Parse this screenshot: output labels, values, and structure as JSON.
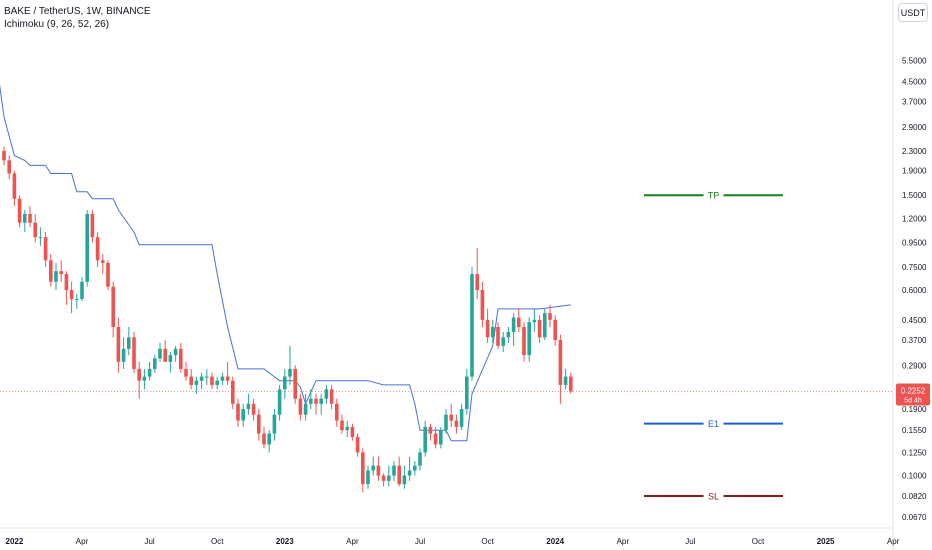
{
  "header": {
    "title": "BAKE / TetherUS, 1W, BINANCE",
    "indicator": "Ichimoku (9, 26, 52, 26)"
  },
  "currency_button": "USDT",
  "colors": {
    "up": "#26a69a",
    "down": "#ef5350",
    "ichimoku": "#4a6fd8",
    "tp": "#1b7f1b",
    "entry": "#1e5cd6",
    "sl": "#8b1a1a",
    "price_tag": "#ef5350"
  },
  "price_tag": {
    "value": "0.2252",
    "countdown": "5d 4h"
  },
  "chart_data": {
    "type": "candlestick",
    "y_scale": "log",
    "ylim": [
      0.062,
      7.4
    ],
    "y_ticks": [
      "5.5000",
      "4.5000",
      "3.7000",
      "2.9000",
      "2.3000",
      "1.9000",
      "1.5000",
      "1.2000",
      "0.9500",
      "0.7500",
      "0.6000",
      "0.4500",
      "0.3700",
      "0.2900",
      "0.1900",
      "0.1550",
      "0.1250",
      "0.1000",
      "0.0820",
      "0.0670"
    ],
    "x_labels": [
      {
        "label": "2022",
        "week": 2
      },
      {
        "label": "Apr",
        "week": 15
      },
      {
        "label": "Jul",
        "week": 28
      },
      {
        "label": "Oct",
        "week": 41
      },
      {
        "label": "2023",
        "week": 54
      },
      {
        "label": "Apr",
        "week": 67
      },
      {
        "label": "Jul",
        "week": 80
      },
      {
        "label": "Oct",
        "week": 93
      },
      {
        "label": "2024",
        "week": 106
      },
      {
        "label": "Apr",
        "week": 119
      },
      {
        "label": "Jul",
        "week": 132
      },
      {
        "label": "Oct",
        "week": 145
      },
      {
        "label": "2025",
        "week": 158
      },
      {
        "label": "Apr",
        "week": 171
      }
    ],
    "candles_ohlc": [
      [
        2.3,
        2.4,
        2.0,
        2.1
      ],
      [
        2.1,
        2.2,
        1.75,
        1.85
      ],
      [
        1.85,
        1.9,
        1.35,
        1.45
      ],
      [
        1.45,
        1.5,
        1.1,
        1.15
      ],
      [
        1.15,
        1.3,
        1.05,
        1.25
      ],
      [
        1.25,
        1.35,
        1.1,
        1.15
      ],
      [
        1.15,
        1.25,
        0.95,
        1.0
      ],
      [
        1.0,
        1.1,
        0.92,
        1.0
      ],
      [
        1.0,
        1.05,
        0.75,
        0.8
      ],
      [
        0.8,
        0.85,
        0.62,
        0.65
      ],
      [
        0.65,
        0.78,
        0.6,
        0.72
      ],
      [
        0.72,
        0.8,
        0.65,
        0.7
      ],
      [
        0.7,
        0.72,
        0.52,
        0.6
      ],
      [
        0.6,
        0.65,
        0.48,
        0.55
      ],
      [
        0.55,
        0.58,
        0.5,
        0.55
      ],
      [
        0.55,
        0.68,
        0.54,
        0.65
      ],
      [
        0.65,
        1.3,
        0.62,
        1.25
      ],
      [
        1.25,
        1.3,
        0.95,
        1.0
      ],
      [
        1.0,
        1.05,
        0.75,
        0.8
      ],
      [
        0.8,
        0.85,
        0.7,
        0.78
      ],
      [
        0.78,
        0.8,
        0.6,
        0.62
      ],
      [
        0.62,
        0.65,
        0.38,
        0.42
      ],
      [
        0.42,
        0.46,
        0.27,
        0.3
      ],
      [
        0.3,
        0.38,
        0.28,
        0.34
      ],
      [
        0.34,
        0.42,
        0.32,
        0.38
      ],
      [
        0.38,
        0.4,
        0.27,
        0.28
      ],
      [
        0.28,
        0.3,
        0.21,
        0.25
      ],
      [
        0.25,
        0.28,
        0.23,
        0.26
      ],
      [
        0.26,
        0.3,
        0.25,
        0.28
      ],
      [
        0.28,
        0.32,
        0.27,
        0.31
      ],
      [
        0.31,
        0.36,
        0.3,
        0.34
      ],
      [
        0.34,
        0.37,
        0.3,
        0.3
      ],
      [
        0.3,
        0.33,
        0.27,
        0.32
      ],
      [
        0.32,
        0.35,
        0.3,
        0.34
      ],
      [
        0.34,
        0.36,
        0.27,
        0.28
      ],
      [
        0.28,
        0.3,
        0.25,
        0.26
      ],
      [
        0.26,
        0.28,
        0.23,
        0.24
      ],
      [
        0.24,
        0.26,
        0.22,
        0.25
      ],
      [
        0.25,
        0.27,
        0.23,
        0.26
      ],
      [
        0.26,
        0.28,
        0.24,
        0.26
      ],
      [
        0.26,
        0.27,
        0.23,
        0.24
      ],
      [
        0.24,
        0.26,
        0.23,
        0.25
      ],
      [
        0.25,
        0.27,
        0.24,
        0.26
      ],
      [
        0.26,
        0.3,
        0.24,
        0.25
      ],
      [
        0.25,
        0.26,
        0.19,
        0.2
      ],
      [
        0.2,
        0.21,
        0.16,
        0.17
      ],
      [
        0.17,
        0.2,
        0.16,
        0.19
      ],
      [
        0.19,
        0.22,
        0.18,
        0.2
      ],
      [
        0.2,
        0.21,
        0.17,
        0.18
      ],
      [
        0.18,
        0.19,
        0.14,
        0.15
      ],
      [
        0.15,
        0.16,
        0.13,
        0.135
      ],
      [
        0.135,
        0.155,
        0.125,
        0.15
      ],
      [
        0.15,
        0.19,
        0.14,
        0.18
      ],
      [
        0.18,
        0.24,
        0.17,
        0.23
      ],
      [
        0.23,
        0.28,
        0.21,
        0.26
      ],
      [
        0.26,
        0.35,
        0.24,
        0.28
      ],
      [
        0.28,
        0.29,
        0.2,
        0.21
      ],
      [
        0.21,
        0.22,
        0.17,
        0.18
      ],
      [
        0.18,
        0.22,
        0.17,
        0.2
      ],
      [
        0.2,
        0.23,
        0.19,
        0.21
      ],
      [
        0.21,
        0.22,
        0.18,
        0.2
      ],
      [
        0.2,
        0.22,
        0.18,
        0.21
      ],
      [
        0.21,
        0.24,
        0.2,
        0.23
      ],
      [
        0.23,
        0.24,
        0.19,
        0.2
      ],
      [
        0.2,
        0.21,
        0.16,
        0.17
      ],
      [
        0.17,
        0.18,
        0.15,
        0.155
      ],
      [
        0.155,
        0.17,
        0.145,
        0.16
      ],
      [
        0.16,
        0.165,
        0.14,
        0.145
      ],
      [
        0.145,
        0.15,
        0.12,
        0.125
      ],
      [
        0.125,
        0.13,
        0.085,
        0.092
      ],
      [
        0.092,
        0.11,
        0.088,
        0.105
      ],
      [
        0.105,
        0.12,
        0.1,
        0.11
      ],
      [
        0.11,
        0.12,
        0.095,
        0.1
      ],
      [
        0.1,
        0.102,
        0.09,
        0.095
      ],
      [
        0.095,
        0.11,
        0.09,
        0.1
      ],
      [
        0.1,
        0.115,
        0.095,
        0.11
      ],
      [
        0.11,
        0.12,
        0.09,
        0.092
      ],
      [
        0.092,
        0.11,
        0.088,
        0.1
      ],
      [
        0.1,
        0.12,
        0.095,
        0.105
      ],
      [
        0.105,
        0.115,
        0.1,
        0.11
      ],
      [
        0.11,
        0.13,
        0.105,
        0.125
      ],
      [
        0.125,
        0.17,
        0.12,
        0.16
      ],
      [
        0.16,
        0.165,
        0.14,
        0.15
      ],
      [
        0.15,
        0.16,
        0.13,
        0.135
      ],
      [
        0.135,
        0.16,
        0.13,
        0.155
      ],
      [
        0.155,
        0.19,
        0.15,
        0.18
      ],
      [
        0.18,
        0.2,
        0.16,
        0.17
      ],
      [
        0.17,
        0.18,
        0.15,
        0.16
      ],
      [
        0.16,
        0.2,
        0.155,
        0.19
      ],
      [
        0.19,
        0.28,
        0.18,
        0.26
      ],
      [
        0.26,
        0.75,
        0.25,
        0.7
      ],
      [
        0.7,
        0.9,
        0.55,
        0.6
      ],
      [
        0.6,
        0.65,
        0.42,
        0.45
      ],
      [
        0.45,
        0.5,
        0.36,
        0.38
      ],
      [
        0.38,
        0.45,
        0.36,
        0.42
      ],
      [
        0.42,
        0.44,
        0.34,
        0.35
      ],
      [
        0.35,
        0.4,
        0.33,
        0.38
      ],
      [
        0.38,
        0.42,
        0.36,
        0.4
      ],
      [
        0.4,
        0.48,
        0.35,
        0.46
      ],
      [
        0.46,
        0.5,
        0.4,
        0.42
      ],
      [
        0.42,
        0.44,
        0.3,
        0.32
      ],
      [
        0.32,
        0.46,
        0.3,
        0.44
      ],
      [
        0.44,
        0.5,
        0.4,
        0.45
      ],
      [
        0.45,
        0.47,
        0.36,
        0.38
      ],
      [
        0.38,
        0.5,
        0.37,
        0.48
      ],
      [
        0.48,
        0.52,
        0.42,
        0.45
      ],
      [
        0.45,
        0.47,
        0.35,
        0.37
      ],
      [
        0.37,
        0.39,
        0.2,
        0.24
      ],
      [
        0.24,
        0.28,
        0.23,
        0.26
      ],
      [
        0.26,
        0.27,
        0.22,
        0.2252
      ]
    ],
    "ichimoku_line": [
      [
        -1,
        4.6
      ],
      [
        0,
        3.2
      ],
      [
        2,
        2.2
      ],
      [
        4,
        2.1
      ],
      [
        5,
        2.0
      ],
      [
        8,
        2.0
      ],
      [
        9,
        1.85
      ],
      [
        13,
        1.85
      ],
      [
        14,
        1.55
      ],
      [
        16,
        1.55
      ],
      [
        17,
        1.45
      ],
      [
        21,
        1.45
      ],
      [
        22,
        1.3
      ],
      [
        25,
        1.05
      ],
      [
        26,
        0.93
      ],
      [
        40,
        0.93
      ],
      [
        41,
        0.7
      ],
      [
        43,
        0.42
      ],
      [
        45,
        0.28
      ],
      [
        50,
        0.28
      ],
      [
        53,
        0.25
      ],
      [
        56,
        0.25
      ],
      [
        57,
        0.235
      ],
      [
        58,
        0.2
      ],
      [
        60,
        0.25
      ],
      [
        70,
        0.25
      ],
      [
        73,
        0.24
      ],
      [
        78,
        0.24
      ],
      [
        79,
        0.2
      ],
      [
        80,
        0.155
      ],
      [
        85,
        0.155
      ],
      [
        86,
        0.14
      ],
      [
        89,
        0.14
      ],
      [
        90,
        0.22
      ],
      [
        94,
        0.35
      ],
      [
        95,
        0.5
      ],
      [
        103,
        0.5
      ],
      [
        109,
        0.52
      ]
    ],
    "levels": [
      {
        "label": "TP",
        "value": 1.5
      },
      {
        "label": "E1",
        "value": 0.165
      },
      {
        "label": "SL",
        "value": 0.082
      }
    ]
  }
}
